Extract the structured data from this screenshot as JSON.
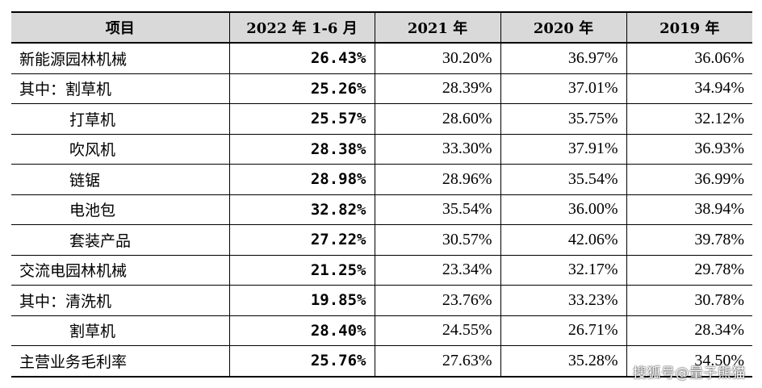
{
  "table": {
    "headers": [
      "项目",
      "2022 年 1-6 月",
      "2021 年",
      "2020 年",
      "2019 年"
    ],
    "rows": [
      {
        "label": "新能源园林机械",
        "values": [
          "26.43%",
          "30.20%",
          "36.97%",
          "36.06%"
        ]
      },
      {
        "label": "其中：割草机",
        "values": [
          "25.26%",
          "28.39%",
          "37.01%",
          "34.94%"
        ]
      },
      {
        "label": "打草机",
        "values": [
          "25.57%",
          "28.60%",
          "35.75%",
          "32.12%"
        ]
      },
      {
        "label": "吹风机",
        "values": [
          "28.38%",
          "33.30%",
          "37.91%",
          "36.93%"
        ]
      },
      {
        "label": "链锯",
        "values": [
          "28.98%",
          "28.96%",
          "35.54%",
          "36.99%"
        ]
      },
      {
        "label": "电池包",
        "values": [
          "32.82%",
          "35.54%",
          "36.00%",
          "38.94%"
        ]
      },
      {
        "label": "套装产品",
        "values": [
          "27.22%",
          "30.57%",
          "42.06%",
          "39.78%"
        ]
      },
      {
        "label": "交流电园林机械",
        "values": [
          "21.25%",
          "23.34%",
          "32.17%",
          "29.78%"
        ]
      },
      {
        "label": "其中：清洗机",
        "values": [
          "19.85%",
          "23.76%",
          "33.23%",
          "30.78%"
        ]
      },
      {
        "label": "割草机",
        "values": [
          "28.40%",
          "24.55%",
          "26.71%",
          "28.34%"
        ]
      },
      {
        "label": "主营业务毛利率",
        "values": [
          "25.76%",
          "27.63%",
          "35.28%",
          "34.50%"
        ]
      }
    ]
  },
  "watermark": "搜狐号@量子熊猫"
}
